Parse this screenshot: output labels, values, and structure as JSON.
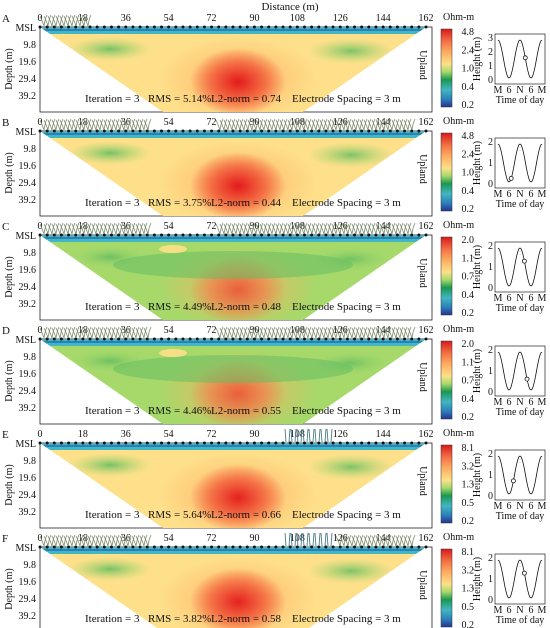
{
  "figure": {
    "x_axis_title": "Distance (m)",
    "distance_ticks": [
      "0",
      "18",
      "36",
      "54",
      "72",
      "90",
      "108",
      "126",
      "144",
      "162"
    ],
    "depth_axis_title": "Depth (m)",
    "depth_ticks": [
      "MSL",
      "9.8",
      "19.6",
      "29.4",
      "39.2"
    ],
    "side_label": "Upland",
    "colorbar_unit": "Ohm-m",
    "inset_ylabel": "Height (m)",
    "inset_xlabel": "Time of day",
    "inset_xticks": [
      "M",
      "6",
      "N",
      "6",
      "M"
    ],
    "iteration_label": "Iteration = 3",
    "spacing_label": "Electrode Spacing = 3 m"
  },
  "panels": [
    {
      "letter": "A",
      "rms": "RMS = 5.14%",
      "l2": "L2-norm = 0.74",
      "colorbar_ticks": [
        "4.8",
        "2.4",
        "1.0",
        "0.4",
        "0.2"
      ],
      "inset_yticks": [
        "3",
        "2",
        "1",
        "0"
      ],
      "vegetation": "grass-left",
      "marker": 0.62
    },
    {
      "letter": "B",
      "rms": "RMS = 3.75%",
      "l2": "L2-norm = 0.44",
      "colorbar_ticks": [
        "4.8",
        "2.4",
        "1.0",
        "0.4",
        "0.2"
      ],
      "inset_yticks": [
        "2",
        "1",
        "0"
      ],
      "vegetation": "grass-full",
      "marker": 0.3
    },
    {
      "letter": "C",
      "rms": "RMS = 4.49%",
      "l2": "L2-norm = 0.48",
      "colorbar_ticks": [
        "2.0",
        "1.1",
        "0.7",
        "0.4",
        "0.2"
      ],
      "inset_yticks": [
        "2",
        "1",
        "0"
      ],
      "vegetation": "grass-full",
      "marker": 0.6
    },
    {
      "letter": "D",
      "rms": "RMS = 4.46%",
      "l2": "L2-norm = 0.55",
      "colorbar_ticks": [
        "2.0",
        "1.1",
        "0.7",
        "0.4",
        "0.2"
      ],
      "inset_yticks": [
        "2",
        "1",
        "0"
      ],
      "vegetation": "grass-full",
      "marker": 0.66
    },
    {
      "letter": "E",
      "rms": "RMS = 5.64%",
      "l2": "L2-norm = 0.66",
      "colorbar_ticks": [
        "8.1",
        "3.2",
        "1.3",
        "0.5",
        "0.2"
      ],
      "inset_yticks": [
        "2",
        "1",
        "0"
      ],
      "vegetation": "reed",
      "marker": 0.35
    },
    {
      "letter": "F",
      "rms": "RMS = 3.82%",
      "l2": "L2-norm = 0.58",
      "colorbar_ticks": [
        "8.1",
        "3.2",
        "1.3",
        "0.5",
        "0.2"
      ],
      "inset_yticks": [
        "2",
        "1",
        "0"
      ],
      "vegetation": "reed-grass",
      "marker": 0.6
    }
  ]
}
